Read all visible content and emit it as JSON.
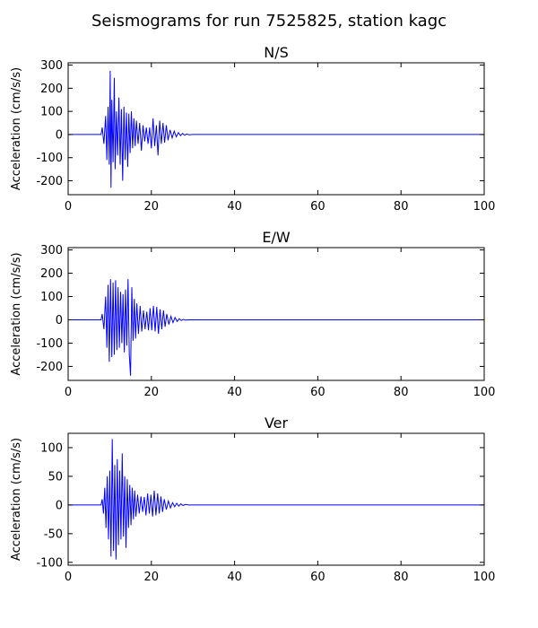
{
  "figure": {
    "title": "Seismograms for run 7525825, station kagc"
  },
  "chart_data": [
    {
      "type": "line",
      "title": "N/S",
      "xlabel": "",
      "ylabel": "Acceleration (cm/s/s)",
      "xlim": [
        0,
        100
      ],
      "ylim": [
        -260,
        310
      ],
      "xticks": [
        0,
        20,
        40,
        60,
        80,
        100
      ],
      "yticks": [
        -200,
        -100,
        0,
        100,
        200,
        300
      ],
      "grid": false,
      "series": [
        {
          "color": "#0000ff",
          "x": [
            0,
            7.9,
            8.2,
            8.6,
            9.0,
            9.3,
            9.6,
            9.9,
            10.1,
            10.3,
            10.5,
            10.8,
            11.1,
            11.3,
            11.6,
            11.9,
            12.2,
            12.5,
            12.8,
            13.1,
            13.4,
            13.7,
            14.0,
            14.3,
            14.6,
            14.9,
            15.2,
            15.5,
            15.8,
            16.1,
            16.4,
            16.8,
            17.2,
            17.6,
            18.0,
            18.4,
            18.8,
            19.2,
            19.6,
            20.0,
            20.4,
            20.8,
            21.2,
            21.6,
            22.0,
            22.4,
            22.8,
            23.2,
            23.6,
            24.0,
            24.5,
            25.0,
            25.5,
            26.0,
            26.5,
            27.0,
            27.5,
            28.0,
            28.5,
            29.0,
            30.0,
            100
          ],
          "y": [
            0,
            0,
            30,
            -40,
            80,
            -110,
            120,
            -130,
            275,
            -230,
            150,
            -120,
            245,
            -150,
            100,
            -90,
            160,
            -130,
            110,
            -200,
            120,
            -110,
            95,
            -140,
            90,
            -80,
            100,
            -60,
            70,
            -50,
            60,
            -40,
            50,
            -70,
            40,
            -30,
            30,
            -40,
            30,
            -60,
            70,
            -50,
            40,
            -90,
            60,
            -40,
            50,
            -35,
            40,
            -25,
            20,
            -15,
            15,
            -10,
            8,
            -5,
            5,
            -3,
            2,
            -1,
            0,
            0
          ]
        }
      ]
    },
    {
      "type": "line",
      "title": "E/W",
      "xlabel": "",
      "ylabel": "Acceleration (cm/s/s)",
      "xlim": [
        0,
        100
      ],
      "ylim": [
        -260,
        310
      ],
      "xticks": [
        0,
        20,
        40,
        60,
        80,
        100
      ],
      "yticks": [
        -200,
        -100,
        0,
        100,
        200,
        300
      ],
      "grid": false,
      "series": [
        {
          "color": "#0000ff",
          "x": [
            0,
            7.9,
            8.2,
            8.6,
            9.0,
            9.3,
            9.6,
            9.9,
            10.2,
            10.5,
            10.8,
            11.1,
            11.4,
            11.7,
            12.0,
            12.3,
            12.6,
            12.9,
            13.2,
            13.5,
            13.8,
            14.1,
            14.4,
            14.7,
            15.0,
            15.3,
            15.6,
            15.9,
            16.2,
            16.5,
            16.9,
            17.3,
            17.7,
            18.1,
            18.5,
            18.9,
            19.3,
            19.7,
            20.1,
            20.5,
            20.9,
            21.3,
            21.7,
            22.1,
            22.5,
            22.9,
            23.3,
            23.7,
            24.2,
            24.7,
            25.2,
            25.7,
            26.2,
            26.7,
            27.2,
            27.7,
            28.2,
            29.0,
            100
          ],
          "y": [
            0,
            0,
            25,
            -40,
            100,
            -120,
            150,
            -180,
            175,
            -160,
            160,
            -150,
            170,
            -130,
            140,
            -120,
            120,
            -100,
            110,
            -140,
            130,
            -110,
            175,
            -150,
            -240,
            140,
            -90,
            90,
            -80,
            70,
            -60,
            60,
            -50,
            40,
            -40,
            35,
            -45,
            50,
            -45,
            60,
            -50,
            55,
            -60,
            45,
            -40,
            40,
            -30,
            25,
            -20,
            15,
            -12,
            10,
            -7,
            5,
            -3,
            2,
            -1,
            0,
            0
          ]
        }
      ]
    },
    {
      "type": "line",
      "title": "Ver",
      "xlabel": "",
      "ylabel": "Acceleration (cm/s/s)",
      "xlim": [
        0,
        100
      ],
      "ylim": [
        -105,
        125
      ],
      "xticks": [
        0,
        20,
        40,
        60,
        80,
        100
      ],
      "yticks": [
        -100,
        -50,
        0,
        50,
        100
      ],
      "grid": false,
      "series": [
        {
          "color": "#0000ff",
          "x": [
            0,
            7.9,
            8.2,
            8.5,
            8.8,
            9.1,
            9.4,
            9.7,
            10.0,
            10.3,
            10.6,
            10.9,
            11.2,
            11.5,
            11.8,
            12.1,
            12.4,
            12.7,
            13.0,
            13.3,
            13.6,
            13.9,
            14.2,
            14.5,
            14.8,
            15.1,
            15.4,
            15.7,
            16.0,
            16.3,
            16.7,
            17.1,
            17.5,
            17.9,
            18.3,
            18.7,
            19.1,
            19.5,
            19.9,
            20.3,
            20.7,
            21.1,
            21.5,
            21.9,
            22.3,
            22.7,
            23.1,
            23.6,
            24.1,
            24.6,
            25.1,
            25.6,
            26.1,
            26.6,
            27.1,
            27.6,
            28.2,
            29.0,
            100
          ],
          "y": [
            0,
            0,
            10,
            -15,
            30,
            -40,
            50,
            -60,
            60,
            -90,
            115,
            -80,
            70,
            -95,
            80,
            -70,
            60,
            -60,
            90,
            -55,
            50,
            -75,
            45,
            -40,
            35,
            -35,
            30,
            -25,
            25,
            -20,
            18,
            -15,
            15,
            -12,
            14,
            -18,
            20,
            -15,
            18,
            -20,
            25,
            -18,
            20,
            -15,
            15,
            -12,
            10,
            -8,
            7,
            -5,
            4,
            -3,
            3,
            -2,
            2,
            -1,
            1,
            0,
            0
          ]
        }
      ]
    }
  ]
}
